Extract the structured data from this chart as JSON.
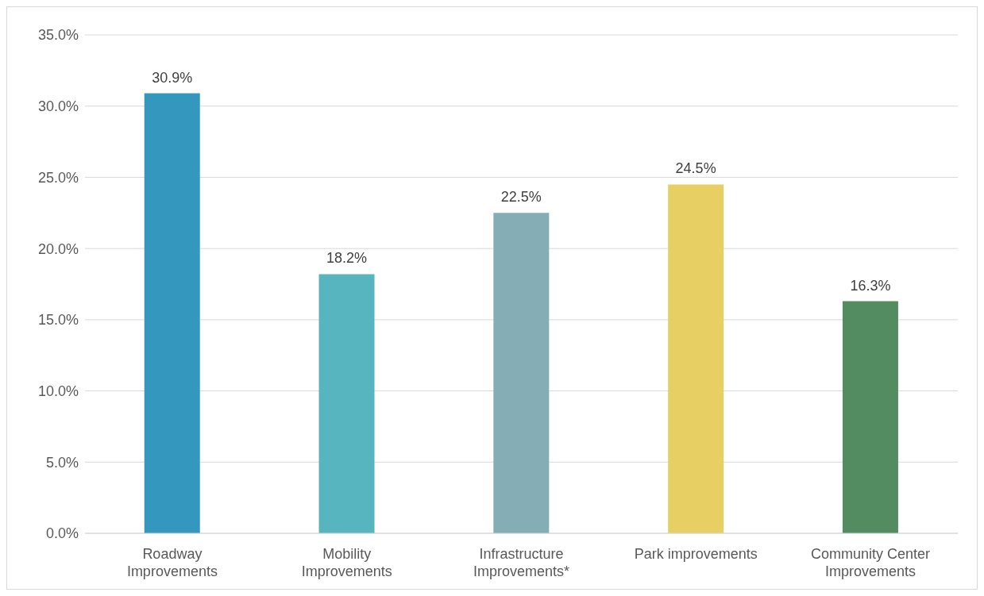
{
  "chart_data": {
    "type": "bar",
    "categories": [
      "Roadway Improvements",
      "Mobility Improvements",
      "Infrastructure Improvements*",
      "Park improvements",
      "Community Center Improvements"
    ],
    "values": [
      30.9,
      18.2,
      22.5,
      24.5,
      16.3
    ],
    "colors": [
      "#3497bd",
      "#57b5bf",
      "#85adb5",
      "#e8cf63",
      "#538c61"
    ],
    "value_labels": [
      "30.9%",
      "18.2%",
      "22.5%",
      "24.5%",
      "16.3%"
    ],
    "ylim": [
      0,
      35
    ],
    "yticks": [
      {
        "value": 0,
        "label": "0.0%"
      },
      {
        "value": 5,
        "label": "5.0%"
      },
      {
        "value": 10,
        "label": "10.0%"
      },
      {
        "value": 15,
        "label": "15.0%"
      },
      {
        "value": 20,
        "label": "20.0%"
      },
      {
        "value": 25,
        "label": "25.0%"
      },
      {
        "value": 30,
        "label": "30.0%"
      },
      {
        "value": 35,
        "label": "35.0%"
      }
    ],
    "grid": "y"
  }
}
